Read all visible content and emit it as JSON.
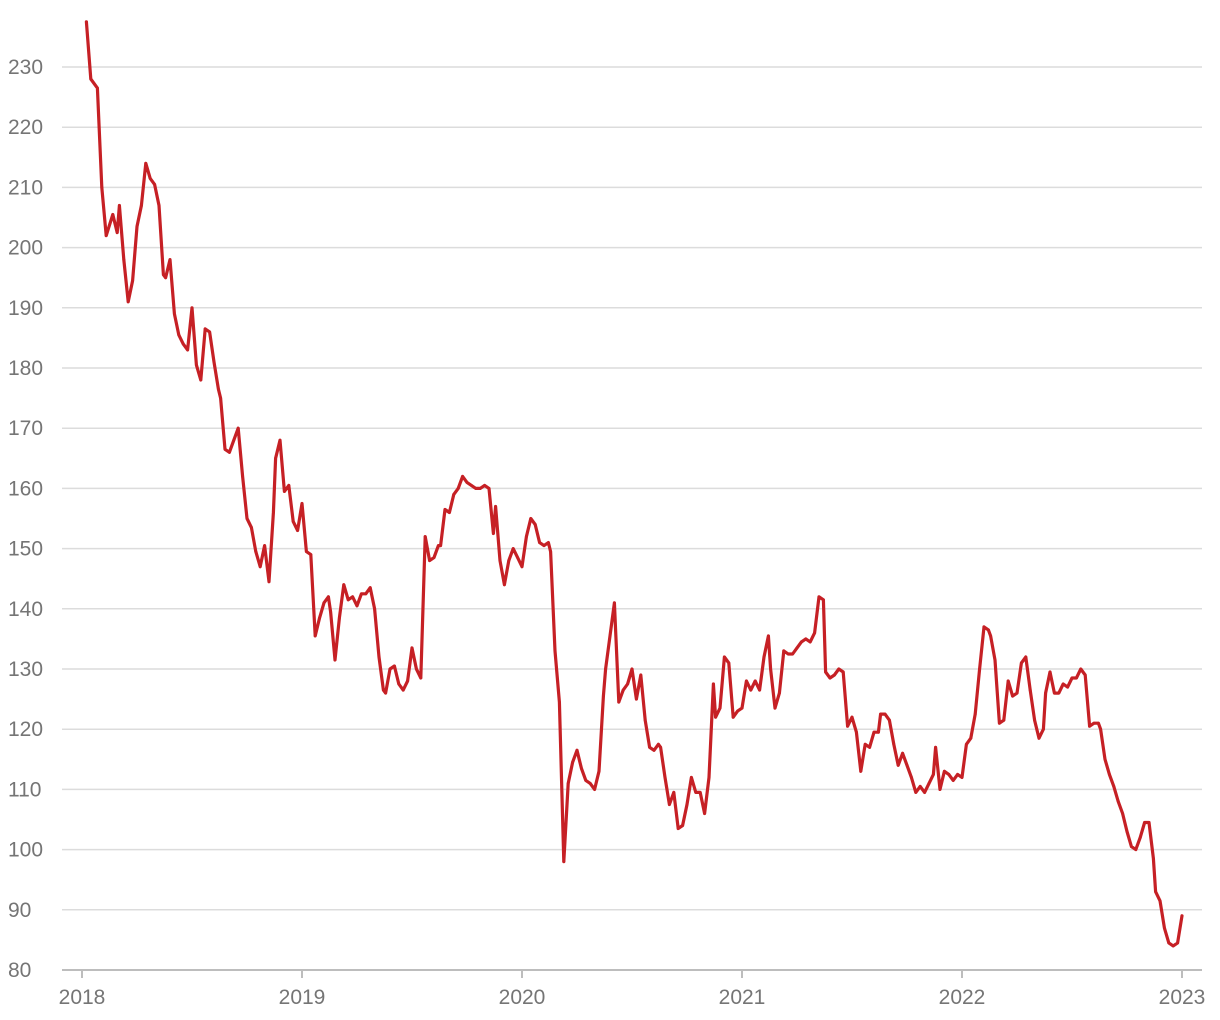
{
  "chart_data": {
    "type": "line",
    "title": "",
    "xlabel": "",
    "ylabel": "",
    "xlim": [
      2018.0,
      2023.0
    ],
    "ylim": [
      80,
      237
    ],
    "y_ticks": [
      80,
      90,
      100,
      110,
      120,
      130,
      140,
      150,
      160,
      170,
      180,
      190,
      200,
      210,
      220,
      230
    ],
    "x_ticks": [
      2018,
      2019,
      2020,
      2021,
      2022,
      2023
    ],
    "x_tick_labels": [
      "2018",
      "2019",
      "2020",
      "2021",
      "2022",
      "2023"
    ],
    "grid": "horizontal",
    "legend": "none",
    "colors": {
      "series": "#c62025",
      "grid": "#dcdcdc",
      "axis": "#bdbdbd",
      "tick_text": "#757575"
    },
    "series": [
      {
        "x": [
          2018.02,
          2018.04,
          2018.07,
          2018.09,
          2018.11,
          2018.14,
          2018.16,
          2018.17,
          2018.19,
          2018.21,
          2018.23,
          2018.25,
          2018.27,
          2018.29,
          2018.31,
          2018.33,
          2018.35,
          2018.37,
          2018.38,
          2018.4,
          2018.42,
          2018.44,
          2018.46,
          2018.48,
          2018.5,
          2018.52,
          2018.54,
          2018.56,
          2018.58,
          2018.6,
          2018.62,
          2018.63,
          2018.65,
          2018.67,
          2018.69,
          2018.71,
          2018.73,
          2018.75,
          2018.77,
          2018.79,
          2018.81,
          2018.83,
          2018.85,
          2018.87,
          2018.88,
          2018.9,
          2018.92,
          2018.94,
          2018.96,
          2018.98,
          2019.0,
          2019.02,
          2019.04,
          2019.06,
          2019.08,
          2019.1,
          2019.12,
          2019.13,
          2019.15,
          2019.17,
          2019.19,
          2019.21,
          2019.23,
          2019.25,
          2019.27,
          2019.29,
          2019.31,
          2019.33,
          2019.35,
          2019.37,
          2019.38,
          2019.4,
          2019.42,
          2019.44,
          2019.46,
          2019.48,
          2019.5,
          2019.52,
          2019.54,
          2019.56,
          2019.58,
          2019.6,
          2019.62,
          2019.63,
          2019.65,
          2019.67,
          2019.69,
          2019.71,
          2019.73,
          2019.75,
          2019.77,
          2019.79,
          2019.81,
          2019.83,
          2019.85,
          2019.87,
          2019.88,
          2019.9,
          2019.92,
          2019.94,
          2019.96,
          2019.98,
          2020.0,
          2020.02,
          2020.04,
          2020.06,
          2020.08,
          2020.1,
          2020.12,
          2020.13,
          2020.15,
          2020.17,
          2020.19,
          2020.21,
          2020.23,
          2020.25,
          2020.27,
          2020.29,
          2020.31,
          2020.33,
          2020.35,
          2020.37,
          2020.38,
          2020.4,
          2020.42,
          2020.44,
          2020.46,
          2020.48,
          2020.5,
          2020.52,
          2020.54,
          2020.56,
          2020.58,
          2020.6,
          2020.62,
          2020.63,
          2020.65,
          2020.67,
          2020.69,
          2020.71,
          2020.73,
          2020.75,
          2020.77,
          2020.79,
          2020.81,
          2020.83,
          2020.85,
          2020.87,
          2020.88,
          2020.9,
          2020.92,
          2020.94,
          2020.96,
          2020.98,
          2021.0,
          2021.02,
          2021.04,
          2021.06,
          2021.08,
          2021.1,
          2021.12,
          2021.13,
          2021.15,
          2021.17,
          2021.19,
          2021.21,
          2021.23,
          2021.25,
          2021.27,
          2021.29,
          2021.31,
          2021.33,
          2021.35,
          2021.37,
          2021.38,
          2021.4,
          2021.42,
          2021.44,
          2021.46,
          2021.48,
          2021.5,
          2021.52,
          2021.54,
          2021.56,
          2021.58,
          2021.6,
          2021.62,
          2021.63,
          2021.65,
          2021.67,
          2021.69,
          2021.71,
          2021.73,
          2021.75,
          2021.77,
          2021.79,
          2021.81,
          2021.83,
          2021.85,
          2021.87,
          2021.88,
          2021.9,
          2021.92,
          2021.94,
          2021.96,
          2021.98,
          2022.0,
          2022.02,
          2022.04,
          2022.06,
          2022.08,
          2022.1,
          2022.12,
          2022.13,
          2022.15,
          2022.17,
          2022.19,
          2022.21,
          2022.23,
          2022.25,
          2022.27,
          2022.29,
          2022.31,
          2022.33,
          2022.35,
          2022.37,
          2022.38,
          2022.4,
          2022.42,
          2022.44,
          2022.46,
          2022.48,
          2022.5,
          2022.52,
          2022.54,
          2022.56,
          2022.58,
          2022.6,
          2022.62,
          2022.63,
          2022.65,
          2022.67,
          2022.69,
          2022.71,
          2022.73,
          2022.75,
          2022.77,
          2022.79,
          2022.81,
          2022.83,
          2022.85,
          2022.87,
          2022.88,
          2022.9,
          2022.92,
          2022.94,
          2022.96,
          2022.98,
          2023.0
        ],
        "values": [
          237.5,
          228,
          226.5,
          210,
          202,
          205.5,
          202.5,
          207,
          198,
          191,
          194.5,
          203.5,
          207,
          214,
          211.5,
          210.5,
          207,
          195.5,
          195,
          198,
          189,
          185.5,
          184,
          183,
          190,
          180.5,
          178,
          186.5,
          186,
          181,
          176.5,
          175,
          166.5,
          166,
          168,
          170,
          162,
          155,
          153.5,
          149.5,
          147,
          150.5,
          144.5,
          156,
          165,
          168,
          159.5,
          160.5,
          154.5,
          153,
          157.5,
          149.5,
          149,
          135.5,
          138.5,
          141,
          142,
          139.5,
          131.5,
          138.5,
          144,
          141.5,
          142,
          140.5,
          142.5,
          142.5,
          143.5,
          140,
          132,
          126.5,
          126,
          130,
          130.5,
          127.5,
          126.5,
          128,
          133.5,
          130,
          128.5,
          152,
          148,
          148.5,
          150.5,
          150.5,
          156.5,
          156,
          159,
          160,
          162,
          161,
          160.5,
          160,
          160,
          160.5,
          160,
          152.5,
          157,
          148,
          144,
          148,
          150,
          148.5,
          147,
          152,
          155,
          154,
          151,
          150.5,
          151,
          149.5,
          133,
          124.5,
          98,
          111,
          114.5,
          116.5,
          113.5,
          111.5,
          111,
          110,
          113,
          125.5,
          130,
          135.5,
          141,
          124.5,
          126.5,
          127.5,
          130,
          125,
          129,
          121.5,
          117,
          116.5,
          117.5,
          117,
          112,
          107.5,
          109.5,
          103.5,
          104,
          107.5,
          112,
          109.5,
          109.5,
          106,
          112,
          127.5,
          122,
          123.5,
          132,
          131,
          122,
          123,
          123.5,
          128,
          126.5,
          128,
          126.5,
          132,
          135.5,
          130,
          123.5,
          126,
          133,
          132.5,
          132.5,
          133.5,
          134.5,
          135,
          134.5,
          136,
          142,
          141.5,
          129.5,
          128.5,
          129,
          130,
          129.5,
          120.5,
          122,
          119.5,
          113,
          117.5,
          117,
          119.5,
          119.5,
          122.5,
          122.5,
          121.5,
          117.5,
          114,
          116,
          114,
          112,
          109.5,
          110.5,
          109.5,
          111,
          112.5,
          117,
          110,
          113,
          112.5,
          111.5,
          112.5,
          112,
          117.5,
          118.5,
          122.5,
          130,
          137,
          136.5,
          135.5,
          131.5,
          121,
          121.5,
          128,
          125.5,
          126,
          131,
          132,
          126.5,
          121.5,
          118.5,
          120,
          126,
          129.5,
          126,
          126,
          127.5,
          127,
          128.5,
          128.5,
          130,
          129,
          120.5,
          121,
          121,
          120,
          115,
          112.5,
          110.5,
          108,
          106,
          103,
          100.5,
          100,
          102,
          104.5,
          104.5,
          98.5,
          93,
          91.5,
          87,
          84.5,
          84,
          84.5,
          89
        ]
      }
    ]
  }
}
